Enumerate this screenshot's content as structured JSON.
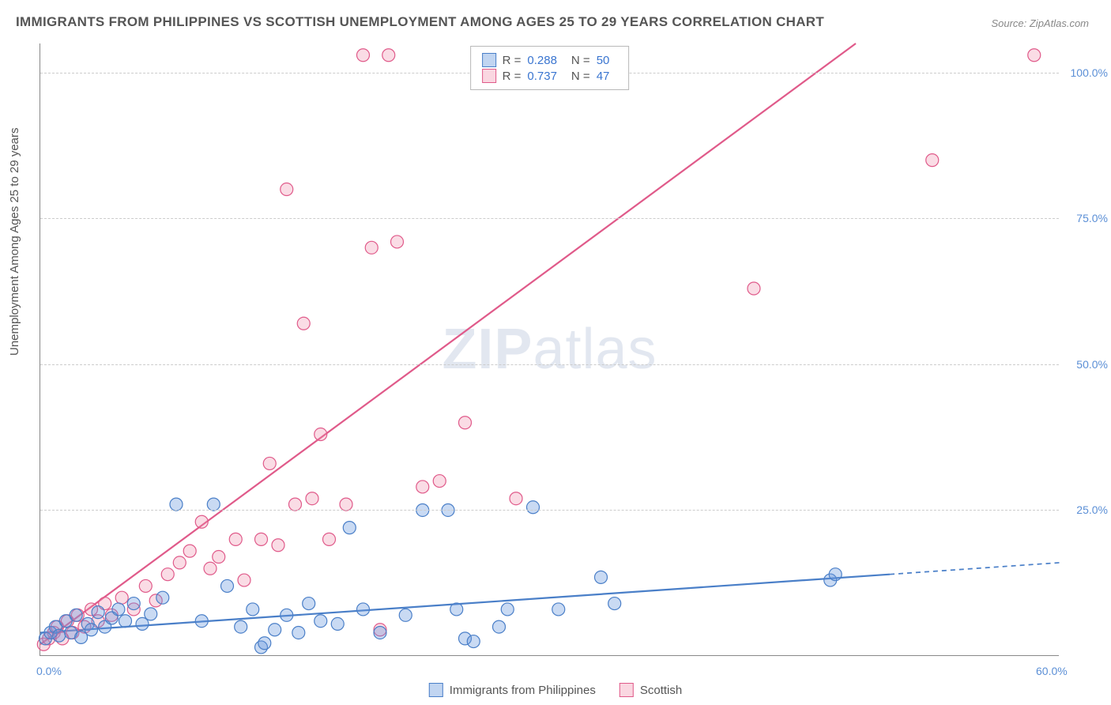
{
  "title": "IMMIGRANTS FROM PHILIPPINES VS SCOTTISH UNEMPLOYMENT AMONG AGES 25 TO 29 YEARS CORRELATION CHART",
  "source": "Source: ZipAtlas.com",
  "y_axis_label": "Unemployment Among Ages 25 to 29 years",
  "watermark": "ZIPatlas",
  "chart": {
    "type": "scatter",
    "xlim": [
      0,
      60
    ],
    "ylim": [
      0,
      105
    ],
    "x_ticks": [
      {
        "v": 0,
        "l": "0.0%"
      },
      {
        "v": 60,
        "l": "60.0%"
      }
    ],
    "y_ticks": [
      {
        "v": 25,
        "l": "25.0%"
      },
      {
        "v": 50,
        "l": "50.0%"
      },
      {
        "v": 75,
        "l": "75.0%"
      },
      {
        "v": 100,
        "l": "100.0%"
      }
    ],
    "grid_color": "#cccccc",
    "background_color": "#ffffff",
    "marker_radius": 8,
    "marker_stroke_width": 1.2,
    "line_width": 2.2,
    "series": [
      {
        "name": "Immigrants from Philippines",
        "color_fill": "rgba(100,150,220,0.35)",
        "color_stroke": "#4a7fc8",
        "r": 0.288,
        "n": 50,
        "trend": {
          "x1": 0,
          "y1": 4,
          "x2": 50,
          "y2": 14,
          "dash_from": 50,
          "dash_to": 60,
          "dash_y2": 16
        },
        "points": [
          [
            0.3,
            3
          ],
          [
            0.6,
            4
          ],
          [
            0.9,
            5
          ],
          [
            1.1,
            3.5
          ],
          [
            1.5,
            6
          ],
          [
            1.8,
            4
          ],
          [
            2.1,
            7
          ],
          [
            2.4,
            3.2
          ],
          [
            2.8,
            5.5
          ],
          [
            3.0,
            4.5
          ],
          [
            3.4,
            7.5
          ],
          [
            3.8,
            5
          ],
          [
            4.2,
            6.5
          ],
          [
            4.6,
            8
          ],
          [
            5.0,
            6
          ],
          [
            5.5,
            9
          ],
          [
            6.0,
            5.5
          ],
          [
            6.5,
            7.2
          ],
          [
            7.2,
            10
          ],
          [
            8.0,
            26
          ],
          [
            9.5,
            6
          ],
          [
            10.2,
            26
          ],
          [
            11.0,
            12
          ],
          [
            11.8,
            5
          ],
          [
            12.5,
            8
          ],
          [
            13.0,
            1.5
          ],
          [
            13.2,
            2.2
          ],
          [
            13.8,
            4.5
          ],
          [
            14.5,
            7
          ],
          [
            15.2,
            4
          ],
          [
            15.8,
            9
          ],
          [
            16.5,
            6
          ],
          [
            17.5,
            5.5
          ],
          [
            18.2,
            22
          ],
          [
            19.0,
            8
          ],
          [
            20.0,
            4
          ],
          [
            21.5,
            7
          ],
          [
            22.5,
            25
          ],
          [
            24.0,
            25
          ],
          [
            24.5,
            8
          ],
          [
            25.0,
            3
          ],
          [
            25.5,
            2.5
          ],
          [
            27.0,
            5
          ],
          [
            27.5,
            8
          ],
          [
            29.0,
            25.5
          ],
          [
            30.5,
            8
          ],
          [
            33.0,
            13.5
          ],
          [
            33.8,
            9
          ],
          [
            46.5,
            13
          ],
          [
            46.8,
            14
          ]
        ]
      },
      {
        "name": "Scottish",
        "color_fill": "rgba(240,140,170,0.3)",
        "color_stroke": "#e05a8a",
        "r": 0.737,
        "n": 47,
        "trend": {
          "x1": 0,
          "y1": 2,
          "x2": 48,
          "y2": 105
        },
        "points": [
          [
            0.2,
            2
          ],
          [
            0.5,
            3
          ],
          [
            0.8,
            4
          ],
          [
            1.0,
            5
          ],
          [
            1.3,
            3
          ],
          [
            1.6,
            6
          ],
          [
            1.9,
            4
          ],
          [
            2.2,
            7
          ],
          [
            2.6,
            5
          ],
          [
            3.0,
            8
          ],
          [
            3.4,
            6
          ],
          [
            3.8,
            9
          ],
          [
            4.2,
            7
          ],
          [
            4.8,
            10
          ],
          [
            5.5,
            8
          ],
          [
            6.2,
            12
          ],
          [
            6.8,
            9.5
          ],
          [
            7.5,
            14
          ],
          [
            8.2,
            16
          ],
          [
            8.8,
            18
          ],
          [
            9.5,
            23
          ],
          [
            10.0,
            15
          ],
          [
            10.5,
            17
          ],
          [
            11.5,
            20
          ],
          [
            12.0,
            13
          ],
          [
            13.0,
            20
          ],
          [
            13.5,
            33
          ],
          [
            14.0,
            19
          ],
          [
            14.5,
            80
          ],
          [
            15.0,
            26
          ],
          [
            15.5,
            57
          ],
          [
            16.0,
            27
          ],
          [
            16.5,
            38
          ],
          [
            17.0,
            20
          ],
          [
            18.0,
            26
          ],
          [
            19.0,
            103
          ],
          [
            19.5,
            70
          ],
          [
            20.5,
            103
          ],
          [
            21.0,
            71
          ],
          [
            22.5,
            29
          ],
          [
            23.5,
            30
          ],
          [
            25.0,
            40
          ],
          [
            28.0,
            27
          ],
          [
            42.0,
            63
          ],
          [
            52.5,
            85
          ],
          [
            58.5,
            103
          ],
          [
            20.0,
            4.5
          ]
        ]
      }
    ]
  },
  "legend_bottom": [
    {
      "swatch": "blue",
      "label": "Immigrants from Philippines"
    },
    {
      "swatch": "pink",
      "label": "Scottish"
    }
  ]
}
